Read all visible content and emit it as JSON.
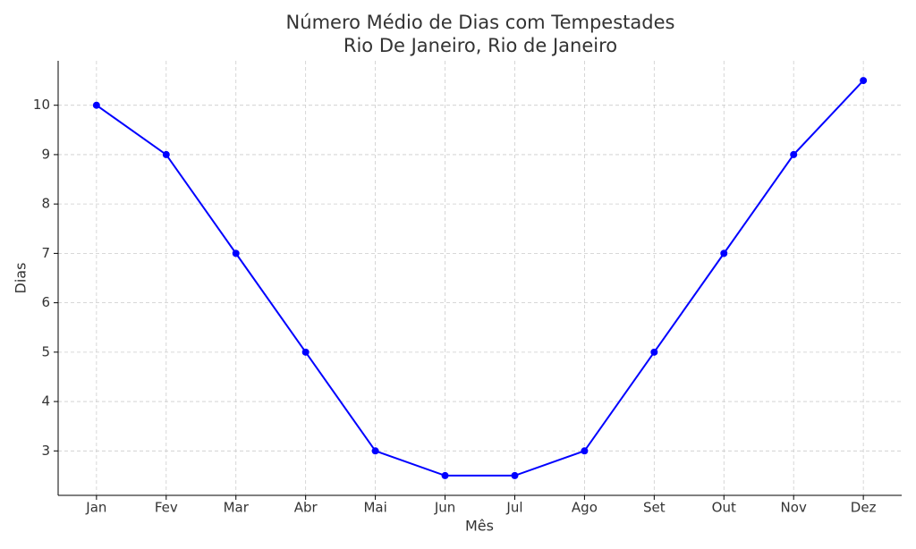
{
  "chart_data": {
    "type": "line",
    "title": [
      "Número Médio de Dias com Tempestades",
      "Rio De Janeiro, Rio de Janeiro"
    ],
    "x_label": "Mês",
    "y_label": "Dias",
    "categories": [
      "Jan",
      "Fev",
      "Mar",
      "Abr",
      "Mai",
      "Jun",
      "Jul",
      "Ago",
      "Set",
      "Out",
      "Nov",
      "Dez"
    ],
    "values": [
      10,
      9,
      7,
      5,
      3,
      2.5,
      2.5,
      3,
      5,
      7,
      9,
      10.5
    ],
    "color": "#0000ff",
    "ylim": [
      2.1,
      10.9
    ],
    "yticks": [
      3,
      4,
      5,
      6,
      7,
      8,
      9,
      10
    ],
    "grid": true
  }
}
